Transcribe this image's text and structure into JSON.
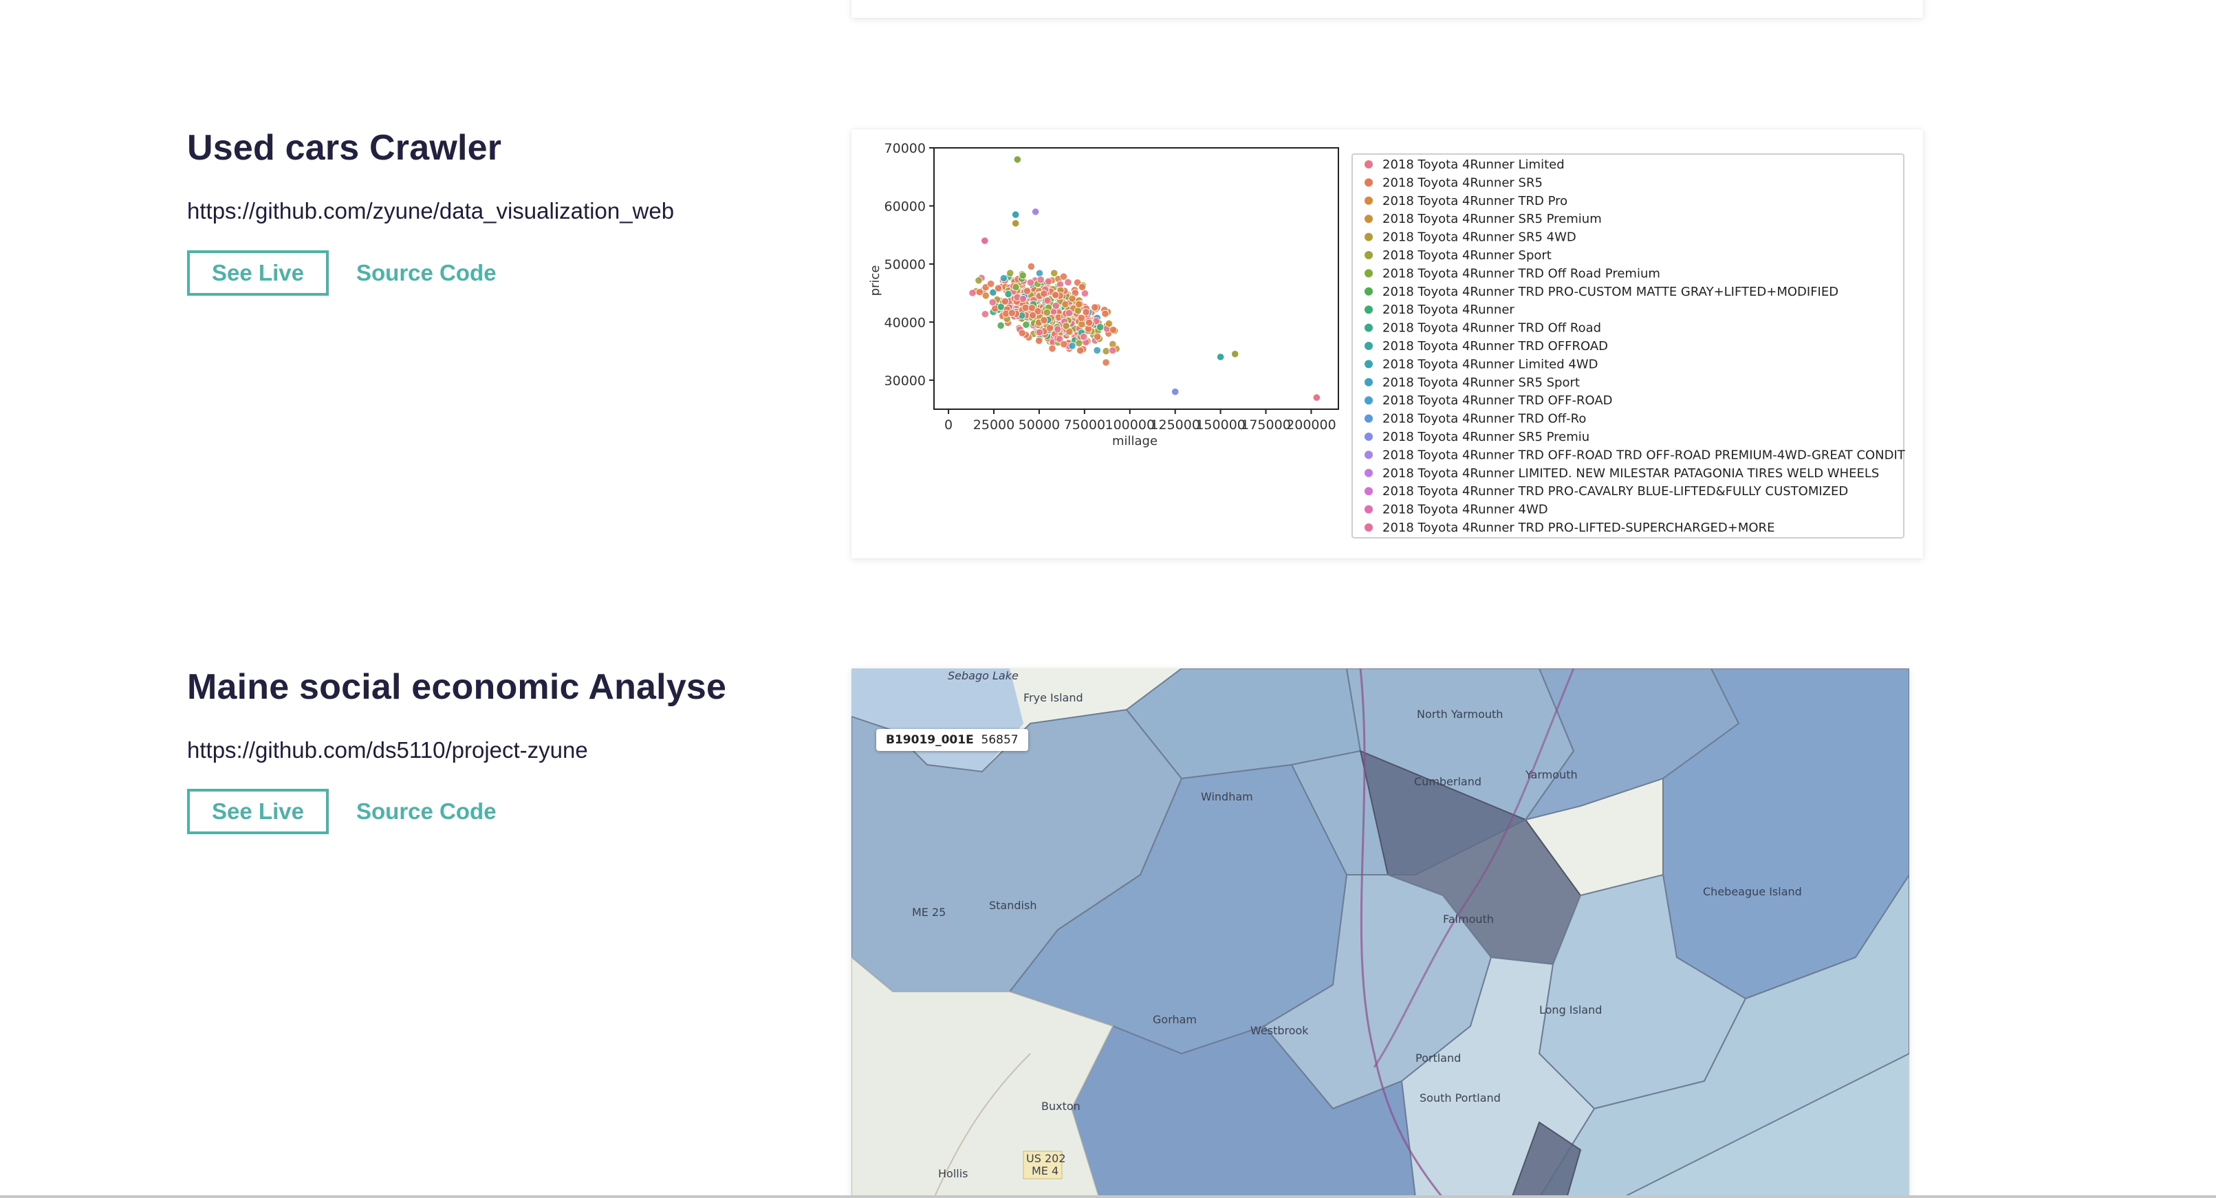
{
  "projects": [
    {
      "title": "Used cars Crawler",
      "url": "https://github.com/zyune/data_visualization_web",
      "live_label": "See Live",
      "source_label": "Source Code"
    },
    {
      "title": "Maine social economic Analyse",
      "url": "https://github.com/ds5110/project-zyune",
      "live_label": "See Live",
      "source_label": "Source Code"
    }
  ],
  "chart_data": {
    "type": "scatter",
    "xlabel": "millage",
    "ylabel": "price",
    "xlim": [
      -8000,
      215000
    ],
    "ylim": [
      25000,
      70000
    ],
    "x_ticks": [
      0,
      25000,
      50000,
      75000,
      100000,
      125000,
      150000,
      175000,
      200000
    ],
    "y_ticks": [
      30000,
      40000,
      50000,
      60000,
      70000
    ],
    "legend_position": "right",
    "series": [
      {
        "name": "2018 Toyota 4Runner Limited",
        "color": "#e8768a"
      },
      {
        "name": "2018 Toyota 4Runner SR5",
        "color": "#e57a55"
      },
      {
        "name": "2018 Toyota 4Runner TRD Pro",
        "color": "#d9883f"
      },
      {
        "name": "2018 Toyota 4Runner SR5 Premium",
        "color": "#c9923a"
      },
      {
        "name": "2018 Toyota 4Runner SR5 4WD",
        "color": "#b39b3a"
      },
      {
        "name": "2018 Toyota 4Runner Sport",
        "color": "#9da53a"
      },
      {
        "name": "2018 Toyota 4Runner TRD Off Road Premium",
        "color": "#7fac3a"
      },
      {
        "name": "2018 Toyota 4Runner TRD PRO-CUSTOM MATTE GRAY+LIFTED+MODIFIED",
        "color": "#4fae4e"
      },
      {
        "name": "2018 Toyota 4Runner",
        "color": "#3aad72"
      },
      {
        "name": "2018 Toyota 4Runner TRD Off Road",
        "color": "#39ab8d"
      },
      {
        "name": "2018 Toyota 4Runner TRD OFFROAD",
        "color": "#3aa8a0"
      },
      {
        "name": "2018 Toyota 4Runner Limited 4WD",
        "color": "#3ba6b2"
      },
      {
        "name": "2018 Toyota 4Runner SR5 Sport",
        "color": "#3ea3c3"
      },
      {
        "name": "2018 Toyota 4Runner TRD OFF-ROAD",
        "color": "#46a0d4"
      },
      {
        "name": "2018 Toyota 4Runner TRD Off-Ro",
        "color": "#5b98e2"
      },
      {
        "name": "2018 Toyota 4Runner SR5 Premiu",
        "color": "#828ee8"
      },
      {
        "name": "2018 Toyota 4Runner TRD OFF-ROAD TRD OFF-ROAD PREMIUM-4WD-GREAT CONDIT",
        "color": "#a486ea"
      },
      {
        "name": "2018 Toyota 4Runner LIMITED. NEW MILESTAR PATAGONIA TIRES WELD WHEELS",
        "color": "#c07ae6"
      },
      {
        "name": "2018 Toyota 4Runner TRD PRO-CAVALRY BLUE-LIFTED&FULLY CUSTOMIZED",
        "color": "#d670d2"
      },
      {
        "name": "2018 Toyota 4Runner 4WD",
        "color": "#e26cb6"
      },
      {
        "name": "2018 Toyota 4Runner TRD PRO-LIFTED-SUPERCHARGED+MORE",
        "color": "#e86e9c"
      }
    ],
    "outliers": [
      {
        "x": 38000,
        "y": 68000
      },
      {
        "x": 37000,
        "y": 58500
      },
      {
        "x": 48000,
        "y": 59000
      },
      {
        "x": 203000,
        "y": 27000
      },
      {
        "x": 158000,
        "y": 34500
      },
      {
        "x": 150000,
        "y": 34000
      },
      {
        "x": 125000,
        "y": 28000
      },
      {
        "x": 20000,
        "y": 54000
      },
      {
        "x": 37000,
        "y": 57000
      }
    ]
  },
  "map": {
    "tooltip_field": "B19019_001E",
    "tooltip_value": "56857",
    "labels": [
      "Sebago Lake",
      "Frye Island",
      "North Yarmouth",
      "Cumberland",
      "Yarmouth",
      "Windham",
      "Standish",
      "ME 25",
      "Falmouth",
      "Chebeague Island",
      "Gorham",
      "Westbrook",
      "Long Island",
      "Portland",
      "South Portland",
      "Buxton",
      "US 202",
      "ME 4",
      "Hollis"
    ]
  }
}
